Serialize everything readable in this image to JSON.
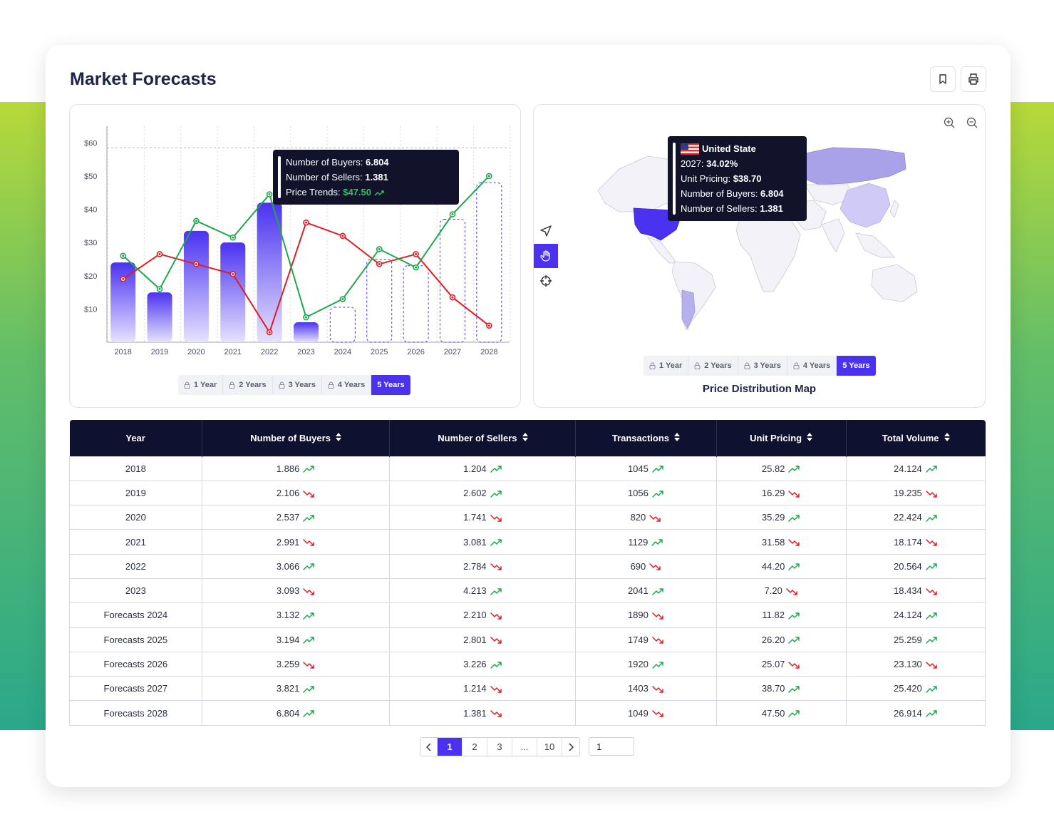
{
  "page": {
    "title": "Market Forecasts"
  },
  "header_actions": {
    "bookmark_icon": "bookmark-icon",
    "print_icon": "printer-icon"
  },
  "colors": {
    "accent": "#4b32f0",
    "sellers_line": "#e31b23",
    "trend_line": "#1ea84b",
    "header_bg": "#0f1130"
  },
  "chart_panel": {
    "tooltip": {
      "buyers_label": "Number of Buyers:",
      "buyers_value": "6.804",
      "sellers_label": "Number of Sellers:",
      "sellers_value": "1.381",
      "trend_label": "Price Trends:",
      "trend_value": "$47.50"
    },
    "range_buttons": [
      "1 Year",
      "2 Years",
      "3 Years",
      "4 Years",
      "5 Years"
    ],
    "active_range": "5 Years"
  },
  "chart_data": {
    "type": "bar",
    "categories": [
      "2018",
      "2019",
      "2020",
      "2021",
      "2022",
      "2023",
      "2024",
      "2025",
      "2026",
      "2027",
      "2028"
    ],
    "y_ticks": [
      "$10",
      "$20",
      "$30",
      "$40",
      "$50",
      "$60"
    ],
    "ylim": [
      0,
      65
    ],
    "grid": true,
    "series": [
      {
        "kind": "bar",
        "values": [
          24,
          15,
          33.5,
          30,
          42,
          6,
          10.5,
          25,
          23,
          37,
          48
        ],
        "forecast_from_index": 6
      },
      {
        "kind": "line",
        "values": [
          19,
          26.5,
          23.5,
          20.5,
          3,
          36,
          32,
          23.5,
          26.5,
          13.5,
          5
        ]
      },
      {
        "kind": "line",
        "values": [
          26,
          16,
          36.5,
          31.5,
          44.5,
          7.5,
          13,
          28,
          22.5,
          38.5,
          50
        ]
      }
    ]
  },
  "map_panel": {
    "tooltip": {
      "country": "United State",
      "year_label": "2027:",
      "year_value": "34.02%",
      "unit_label": "Unit Pricing:",
      "unit_value": "$38.70",
      "buyers_label": "Number of Buyers:",
      "buyers_value": "6.804",
      "sellers_label": "Number of Sellers:",
      "sellers_value": "1.381"
    },
    "range_buttons": [
      "1 Year",
      "2 Years",
      "3 Years",
      "4 Years",
      "5 Years"
    ],
    "active_range": "5 Years",
    "caption": "Price Distribution Map",
    "tools": [
      "navigate-icon",
      "hand-pan-icon",
      "crosshair-icon"
    ],
    "zoom": [
      "zoom-in-icon",
      "zoom-out-icon"
    ]
  },
  "table": {
    "headers": [
      "Year",
      "Number of Buyers",
      "Number of Sellers",
      "Transactions",
      "Unit Pricing",
      "Total Volume"
    ],
    "rows": [
      {
        "cells": [
          "2018",
          "1.886",
          "1.204",
          "1045",
          "25.82",
          "24.124"
        ],
        "trends": [
          "up",
          "up",
          "up",
          "up",
          "up"
        ]
      },
      {
        "cells": [
          "2019",
          "2.106",
          "2.602",
          "1056",
          "16.29",
          "19.235"
        ],
        "trends": [
          "down",
          "up",
          "up",
          "down",
          "down"
        ]
      },
      {
        "cells": [
          "2020",
          "2.537",
          "1.741",
          "820",
          "35.29",
          "22.424"
        ],
        "trends": [
          "up",
          "down",
          "down",
          "up",
          "up"
        ]
      },
      {
        "cells": [
          "2021",
          "2.991",
          "3.081",
          "1129",
          "31.58",
          "18.174"
        ],
        "trends": [
          "down",
          "up",
          "up",
          "down",
          "down"
        ]
      },
      {
        "cells": [
          "2022",
          "3.066",
          "2.784",
          "690",
          "44.20",
          "20.564"
        ],
        "trends": [
          "up",
          "down",
          "down",
          "up",
          "up"
        ]
      },
      {
        "cells": [
          "2023",
          "3.093",
          "4.213",
          "2041",
          "7.20",
          "18.434"
        ],
        "trends": [
          "down",
          "up",
          "up",
          "down",
          "down"
        ]
      },
      {
        "cells": [
          "Forecasts 2024",
          "3.132",
          "2.210",
          "1890",
          "11.82",
          "24.124"
        ],
        "trends": [
          "up",
          "down",
          "down",
          "up",
          "up"
        ]
      },
      {
        "cells": [
          "Forecasts 2025",
          "3.194",
          "2.801",
          "1749",
          "26.20",
          "25.259"
        ],
        "trends": [
          "up",
          "down",
          "down",
          "up",
          "up"
        ]
      },
      {
        "cells": [
          "Forecasts 2026",
          "3.259",
          "3.226",
          "1920",
          "25.07",
          "23.130"
        ],
        "trends": [
          "down",
          "up",
          "up",
          "down",
          "down"
        ]
      },
      {
        "cells": [
          "Forecasts 2027",
          "3.821",
          "1.214",
          "1403",
          "38.70",
          "25.420"
        ],
        "trends": [
          "up",
          "down",
          "down",
          "up",
          "up"
        ]
      },
      {
        "cells": [
          "Forecasts 2028",
          "6.804",
          "1.381",
          "1049",
          "47.50",
          "26.914"
        ],
        "trends": [
          "up",
          "down",
          "down",
          "up",
          "up"
        ]
      }
    ]
  },
  "pagination": {
    "pages": [
      "1",
      "2",
      "3",
      "...",
      "10"
    ],
    "current": "1",
    "goto_value": "1"
  }
}
